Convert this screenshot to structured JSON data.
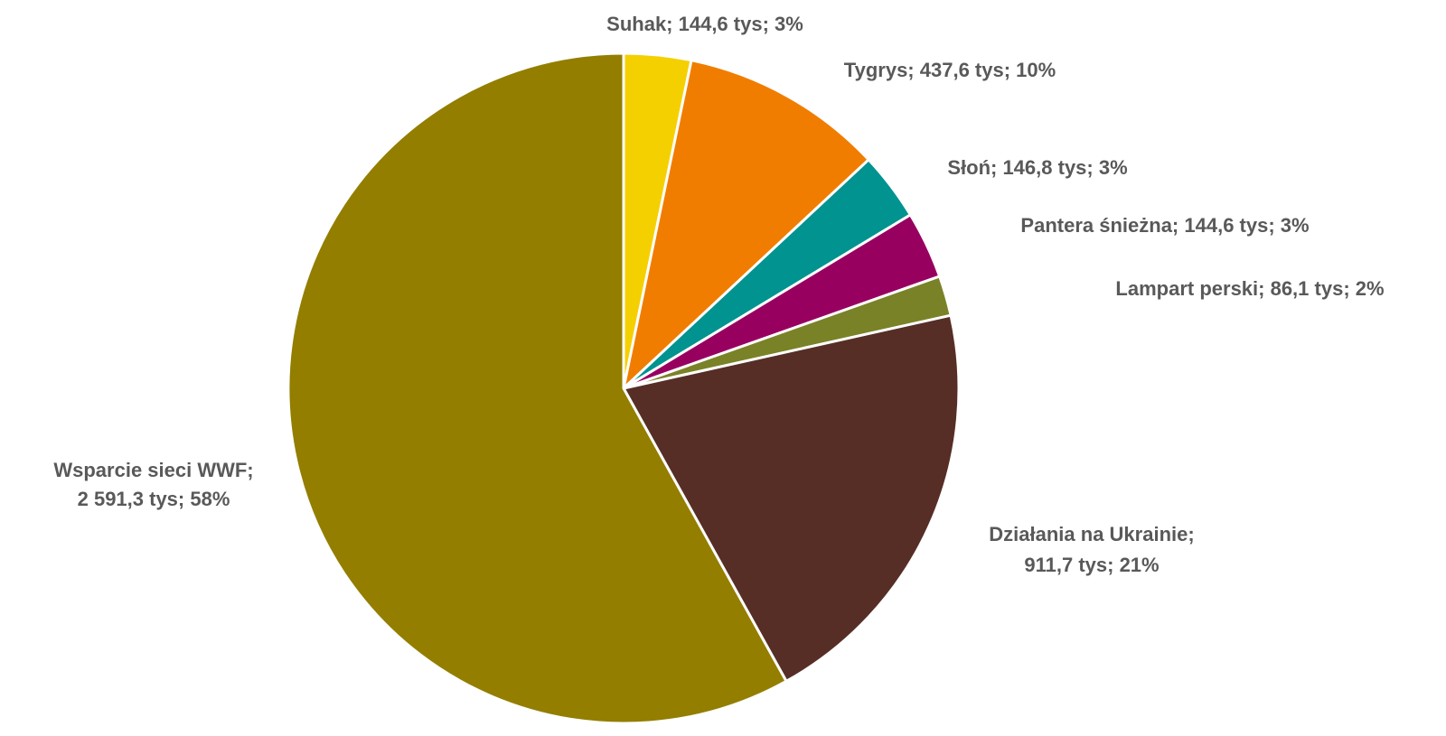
{
  "chart_data": {
    "type": "pie",
    "title": "",
    "unit": "tys",
    "legend": "none",
    "slices": [
      {
        "label": "Suhak",
        "value": 144.6,
        "value_text": "144,6 tys",
        "percent_text": "3%",
        "color": "#F5D000"
      },
      {
        "label": "Tygrys",
        "value": 437.6,
        "value_text": "437,6 tys",
        "percent_text": "10%",
        "color": "#F07D00"
      },
      {
        "label": "Słoń",
        "value": 146.8,
        "value_text": "146,8 tys",
        "percent_text": "3%",
        "color": "#00938F"
      },
      {
        "label": "Pantera śnieżna",
        "value": 144.6,
        "value_text": "144,6 tys",
        "percent_text": "3%",
        "color": "#980060"
      },
      {
        "label": "Lampart perski",
        "value": 86.1,
        "value_text": "86,1 tys",
        "percent_text": "2%",
        "color": "#7A8227"
      },
      {
        "label": "Działania na Ukrainie",
        "value": 911.7,
        "value_text": "911,7 tys",
        "percent_text": "21%",
        "color": "#562E26"
      },
      {
        "label": "Wsparcie sieci WWF",
        "value": 2591.3,
        "value_text": "2 591,3 tys",
        "percent_text": "58%",
        "color": "#937E00"
      }
    ]
  }
}
